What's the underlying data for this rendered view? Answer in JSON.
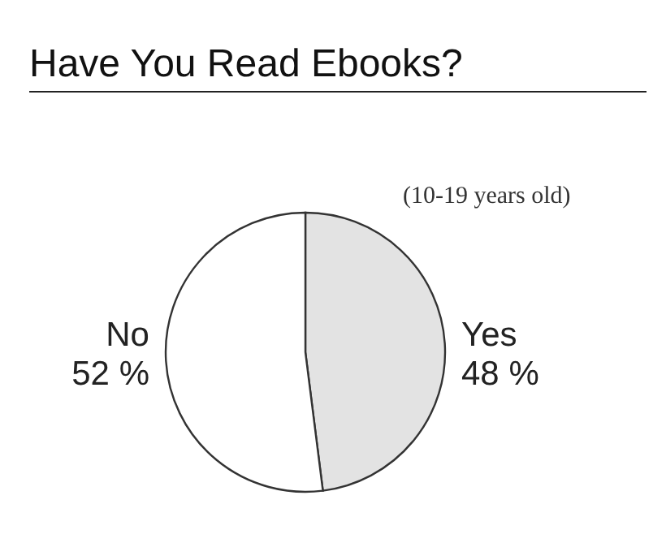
{
  "chart_data": {
    "type": "pie",
    "title": "Have You Read Ebooks?",
    "annotations": [
      "(10-19 years old)"
    ],
    "categories": [
      "Yes",
      "No"
    ],
    "values": [
      48,
      52
    ],
    "colors": [
      "#e3e3e3",
      "#ffffff"
    ],
    "value_labels": [
      "48 %",
      "52 %"
    ]
  }
}
